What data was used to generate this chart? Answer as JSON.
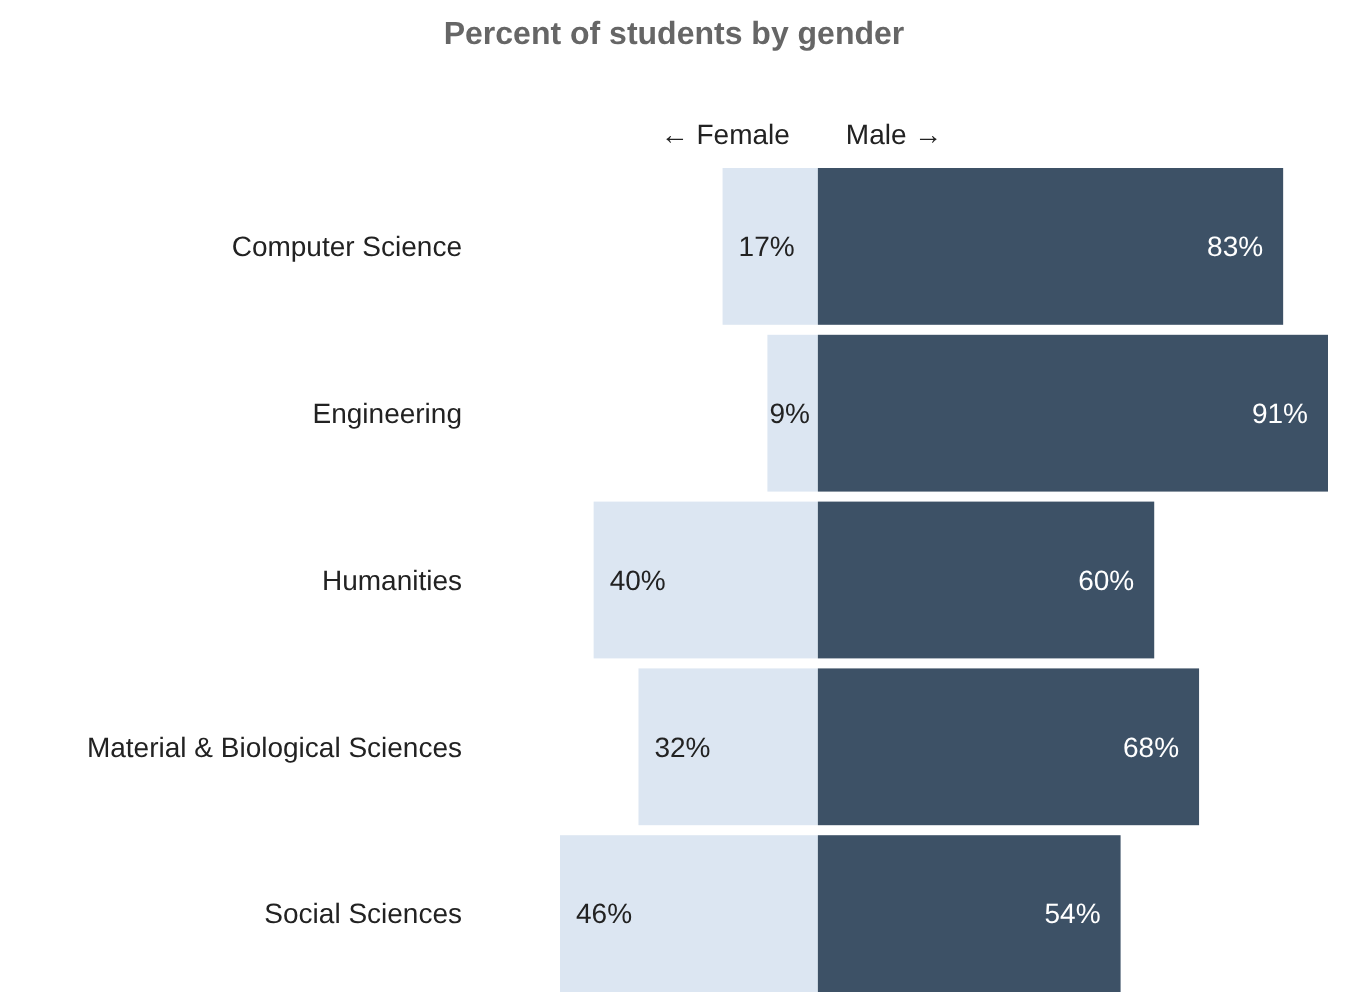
{
  "chart_data": [
    {
      "type": "other",
      "title": "Percent of students by gender"
    },
    {
      "type": "bar",
      "orientation": "horizontal",
      "title": "← Female",
      "categories": [
        "Computer Science",
        "Engineering",
        "Humanities",
        "Material & Biological Sciences",
        "Social Sciences"
      ],
      "xlim": [
        46,
        0
      ],
      "series": [
        {
          "color": "#dce6f2",
          "values": [
            17,
            9,
            40,
            32,
            46
          ],
          "value_labels": [
            "17%",
            "9%",
            "40%",
            "32%",
            "46%"
          ]
        }
      ]
    },
    {
      "type": "bar",
      "orientation": "horizontal",
      "title": "Male →",
      "categories": [
        null,
        null,
        null,
        null,
        null
      ],
      "xlim": [
        0,
        91
      ],
      "series": [
        {
          "color": "#3d5166",
          "values": [
            83,
            91,
            60,
            68,
            54
          ],
          "value_labels": [
            "83%",
            "91%",
            "60%",
            "68%",
            "54%"
          ]
        }
      ]
    }
  ]
}
